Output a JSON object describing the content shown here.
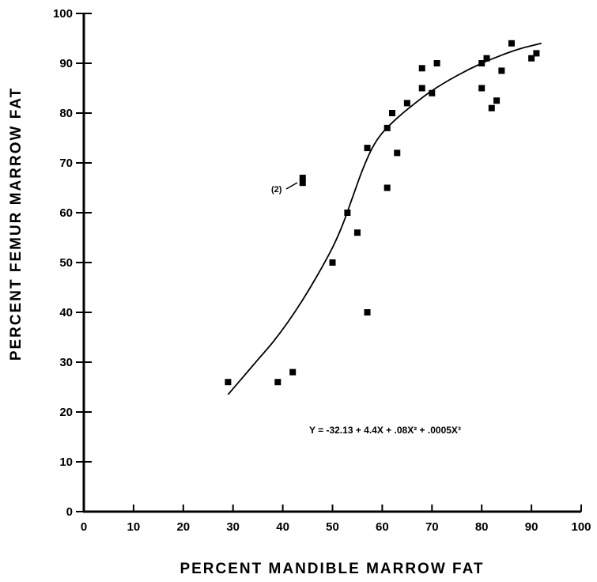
{
  "chart_data": {
    "type": "scatter",
    "title": "",
    "xlabel": "PERCENT MANDIBLE MARROW FAT",
    "ylabel": "PERCENT FEMUR MARROW FAT",
    "xlim": [
      0,
      100
    ],
    "ylim": [
      0,
      100
    ],
    "x_ticks": [
      "0",
      "10",
      "20",
      "30",
      "40",
      "50",
      "60",
      "70",
      "80",
      "90",
      "100"
    ],
    "y_ticks": [
      "0",
      "10",
      "20",
      "30",
      "40",
      "50",
      "60",
      "70",
      "80",
      "90",
      "100"
    ],
    "grid": false,
    "series": [
      {
        "points": [
          [
            29,
            26
          ],
          [
            39,
            26
          ],
          [
            42,
            28
          ],
          [
            44,
            67
          ],
          [
            44,
            66
          ],
          [
            50,
            50
          ],
          [
            53,
            60
          ],
          [
            55,
            56
          ],
          [
            57,
            40
          ],
          [
            57,
            73
          ],
          [
            61,
            65
          ],
          [
            61,
            77
          ],
          [
            62,
            80
          ],
          [
            63,
            72
          ],
          [
            65,
            82
          ],
          [
            68,
            85
          ],
          [
            68,
            89
          ],
          [
            70,
            84
          ],
          [
            71,
            90
          ],
          [
            80,
            85
          ],
          [
            80,
            90
          ],
          [
            81,
            91
          ],
          [
            82,
            81
          ],
          [
            83,
            82.5
          ],
          [
            84,
            88.5
          ],
          [
            86,
            94
          ],
          [
            90,
            91
          ],
          [
            91,
            92
          ]
        ]
      }
    ],
    "curve": {
      "points": [
        [
          29,
          23.5
        ],
        [
          32,
          27
        ],
        [
          35,
          30.5
        ],
        [
          38,
          34
        ],
        [
          41,
          38
        ],
        [
          44,
          42.5
        ],
        [
          47,
          47.5
        ],
        [
          50,
          53
        ],
        [
          52,
          57.5
        ],
        [
          54,
          63
        ],
        [
          56,
          68.5
        ],
        [
          58,
          73
        ],
        [
          60,
          76
        ],
        [
          63,
          79
        ],
        [
          66,
          81.5
        ],
        [
          70,
          84.5
        ],
        [
          75,
          87.5
        ],
        [
          80,
          90
        ],
        [
          85,
          92
        ],
        [
          88,
          93
        ],
        [
          92,
          94
        ]
      ]
    },
    "annotations": [
      {
        "text": "(2)"
      }
    ],
    "equation": "Y = -32.13 + 4.4X + .08X² + .0005X³"
  }
}
